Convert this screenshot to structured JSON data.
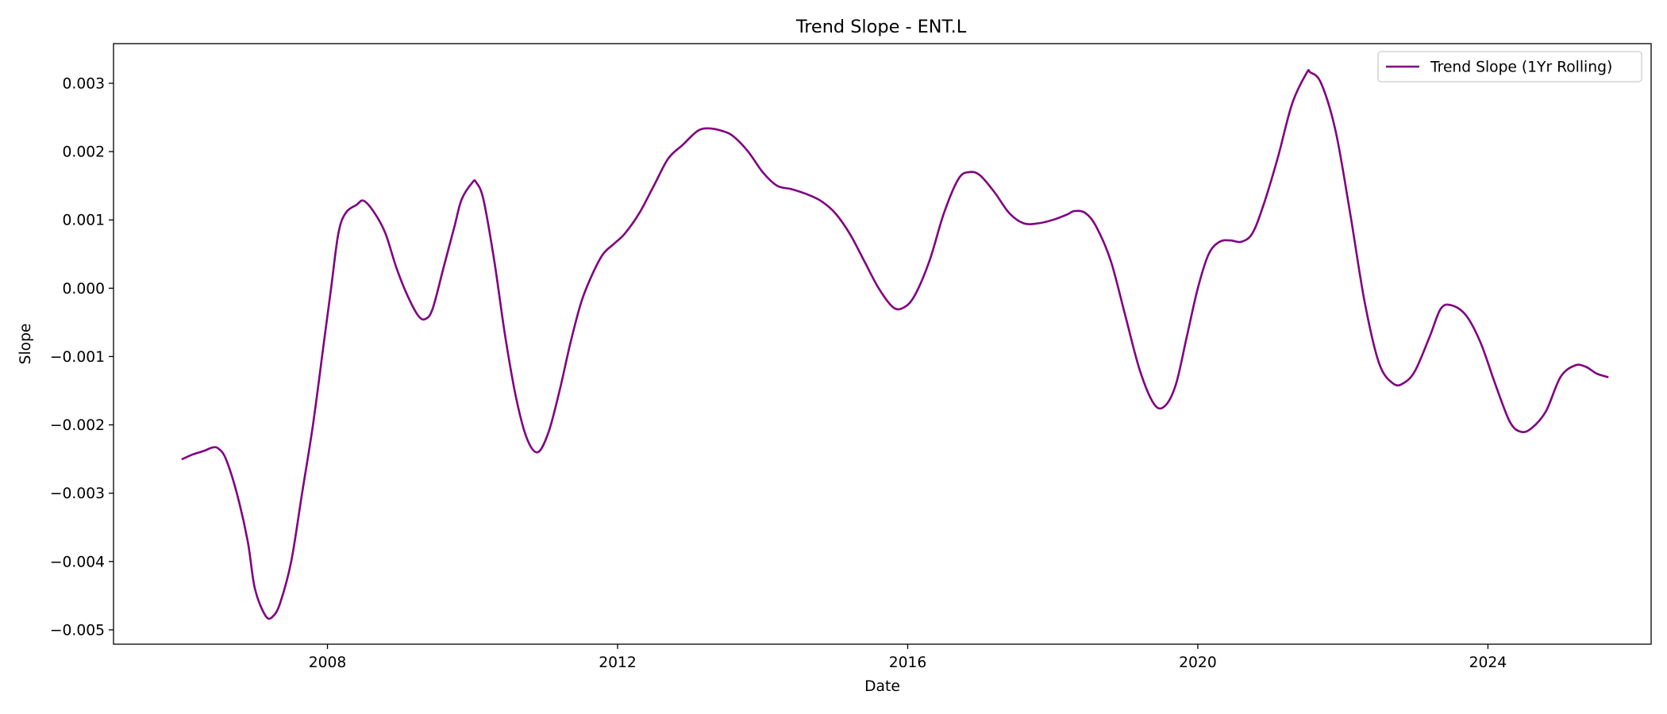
{
  "chart_data": {
    "type": "line",
    "title": "Trend Slope - ENT.L",
    "xlabel": "Date",
    "ylabel": "Slope",
    "xlim": [
      2005.05,
      2026.25
    ],
    "ylim": [
      -0.00521,
      0.00358
    ],
    "x_ticks": [
      {
        "value": 2008,
        "label": "2008"
      },
      {
        "value": 2012,
        "label": "2012"
      },
      {
        "value": 2016,
        "label": "2016"
      },
      {
        "value": 2020,
        "label": "2020"
      },
      {
        "value": 2024,
        "label": "2024"
      }
    ],
    "y_ticks": [
      {
        "value": 0.003,
        "label": "0.003"
      },
      {
        "value": 0.002,
        "label": "0.002"
      },
      {
        "value": 0.001,
        "label": "0.001"
      },
      {
        "value": 0.0,
        "label": "0.000"
      },
      {
        "value": -0.001,
        "label": "−0.001"
      },
      {
        "value": -0.002,
        "label": "−0.002"
      },
      {
        "value": -0.003,
        "label": "−0.003"
      },
      {
        "value": -0.004,
        "label": "−0.004"
      },
      {
        "value": -0.005,
        "label": "−0.005"
      }
    ],
    "grid": false,
    "legend": {
      "position": "top-right"
    },
    "series": [
      {
        "name": "Trend Slope (1Yr Rolling)",
        "color": "#800080",
        "points": [
          [
            2006.0,
            -0.0025
          ],
          [
            2006.15,
            -0.00243
          ],
          [
            2006.3,
            -0.00238
          ],
          [
            2006.42,
            -0.00233
          ],
          [
            2006.5,
            -0.00235
          ],
          [
            2006.6,
            -0.0025
          ],
          [
            2006.75,
            -0.003
          ],
          [
            2006.9,
            -0.0037
          ],
          [
            2007.0,
            -0.0044
          ],
          [
            2007.15,
            -0.0048
          ],
          [
            2007.25,
            -0.0048
          ],
          [
            2007.35,
            -0.0046
          ],
          [
            2007.5,
            -0.004
          ],
          [
            2007.65,
            -0.003
          ],
          [
            2007.8,
            -0.002
          ],
          [
            2007.95,
            -0.0008
          ],
          [
            2008.05,
            0.0
          ],
          [
            2008.15,
            0.0008
          ],
          [
            2008.25,
            0.0011
          ],
          [
            2008.4,
            0.00122
          ],
          [
            2008.5,
            0.00128
          ],
          [
            2008.65,
            0.0011
          ],
          [
            2008.8,
            0.0008
          ],
          [
            2008.95,
            0.0003
          ],
          [
            2009.1,
            -0.0001
          ],
          [
            2009.25,
            -0.0004
          ],
          [
            2009.35,
            -0.00045
          ],
          [
            2009.45,
            -0.0003
          ],
          [
            2009.6,
            0.0003
          ],
          [
            2009.75,
            0.0009
          ],
          [
            2009.85,
            0.0013
          ],
          [
            2010.0,
            0.00155
          ],
          [
            2010.05,
            0.00155
          ],
          [
            2010.15,
            0.0013
          ],
          [
            2010.3,
            0.0004
          ],
          [
            2010.45,
            -0.0007
          ],
          [
            2010.6,
            -0.0016
          ],
          [
            2010.75,
            -0.0022
          ],
          [
            2010.9,
            -0.0024
          ],
          [
            2011.05,
            -0.0021
          ],
          [
            2011.2,
            -0.0015
          ],
          [
            2011.35,
            -0.0008
          ],
          [
            2011.5,
            -0.0002
          ],
          [
            2011.65,
            0.0002
          ],
          [
            2011.8,
            0.0005
          ],
          [
            2011.95,
            0.00065
          ],
          [
            2012.1,
            0.0008
          ],
          [
            2012.3,
            0.0011
          ],
          [
            2012.5,
            0.0015
          ],
          [
            2012.7,
            0.0019
          ],
          [
            2012.9,
            0.0021
          ],
          [
            2013.1,
            0.0023
          ],
          [
            2013.25,
            0.00234
          ],
          [
            2013.45,
            0.0023
          ],
          [
            2013.6,
            0.00222
          ],
          [
            2013.8,
            0.002
          ],
          [
            2014.0,
            0.0017
          ],
          [
            2014.2,
            0.0015
          ],
          [
            2014.4,
            0.00145
          ],
          [
            2014.6,
            0.00138
          ],
          [
            2014.8,
            0.00128
          ],
          [
            2015.0,
            0.0011
          ],
          [
            2015.2,
            0.0008
          ],
          [
            2015.4,
            0.0004
          ],
          [
            2015.6,
            0.0
          ],
          [
            2015.8,
            -0.00028
          ],
          [
            2015.95,
            -0.00028
          ],
          [
            2016.1,
            -0.0001
          ],
          [
            2016.3,
            0.0004
          ],
          [
            2016.5,
            0.0011
          ],
          [
            2016.7,
            0.0016
          ],
          [
            2016.85,
            0.0017
          ],
          [
            2017.0,
            0.00165
          ],
          [
            2017.2,
            0.0014
          ],
          [
            2017.4,
            0.0011
          ],
          [
            2017.6,
            0.00095
          ],
          [
            2017.8,
            0.00095
          ],
          [
            2018.0,
            0.001
          ],
          [
            2018.2,
            0.00108
          ],
          [
            2018.3,
            0.00113
          ],
          [
            2018.45,
            0.0011
          ],
          [
            2018.6,
            0.0009
          ],
          [
            2018.8,
            0.0004
          ],
          [
            2019.0,
            -0.0004
          ],
          [
            2019.2,
            -0.0012
          ],
          [
            2019.4,
            -0.0017
          ],
          [
            2019.55,
            -0.00172
          ],
          [
            2019.7,
            -0.0014
          ],
          [
            2019.85,
            -0.0007
          ],
          [
            2020.0,
            0.0
          ],
          [
            2020.15,
            0.0005
          ],
          [
            2020.3,
            0.00068
          ],
          [
            2020.45,
            0.0007
          ],
          [
            2020.6,
            0.00068
          ],
          [
            2020.75,
            0.0008
          ],
          [
            2020.9,
            0.0012
          ],
          [
            2021.1,
            0.0019
          ],
          [
            2021.3,
            0.0027
          ],
          [
            2021.5,
            0.00315
          ],
          [
            2021.55,
            0.00316
          ],
          [
            2021.7,
            0.003
          ],
          [
            2021.9,
            0.0023
          ],
          [
            2022.1,
            0.0011
          ],
          [
            2022.3,
            -0.0002
          ],
          [
            2022.5,
            -0.0011
          ],
          [
            2022.7,
            -0.0014
          ],
          [
            2022.85,
            -0.00138
          ],
          [
            2023.0,
            -0.0012
          ],
          [
            2023.2,
            -0.0007
          ],
          [
            2023.35,
            -0.0003
          ],
          [
            2023.5,
            -0.00025
          ],
          [
            2023.7,
            -0.0004
          ],
          [
            2023.9,
            -0.0008
          ],
          [
            2024.1,
            -0.0014
          ],
          [
            2024.3,
            -0.00195
          ],
          [
            2024.45,
            -0.0021
          ],
          [
            2024.6,
            -0.00205
          ],
          [
            2024.8,
            -0.0018
          ],
          [
            2025.0,
            -0.0013
          ],
          [
            2025.2,
            -0.00113
          ],
          [
            2025.35,
            -0.00115
          ],
          [
            2025.5,
            -0.00125
          ],
          [
            2025.65,
            -0.0013
          ]
        ]
      }
    ]
  }
}
